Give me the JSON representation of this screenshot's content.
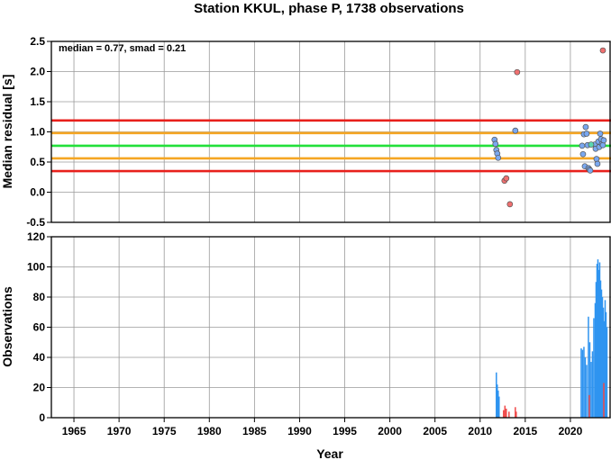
{
  "chart_data": [
    {
      "type": "scatter",
      "title": "Station KKUL, phase P, 1738 observations",
      "ylabel": "Median residual [s]",
      "annotation": "median = 0.77, smad = 0.21",
      "xlim": [
        1962.5,
        2024.5
      ],
      "ylim": [
        -0.5,
        2.5
      ],
      "yticks": [
        "-0.5",
        "0.0",
        "0.5",
        "1.0",
        "1.5",
        "2.0",
        "2.5"
      ],
      "grid": true,
      "reference_lines": [
        {
          "y": 1.19,
          "color": "#e8201c"
        },
        {
          "y": 0.98,
          "color": "#f5a623"
        },
        {
          "y": 0.77,
          "color": "#22e03a"
        },
        {
          "y": 0.56,
          "color": "#f5a623"
        },
        {
          "y": 0.35,
          "color": "#e8201c"
        }
      ],
      "series": [
        {
          "color": "#f07070",
          "points": [
            [
              2012.7,
              0.19
            ],
            [
              2012.9,
              0.23
            ],
            [
              2013.3,
              -0.2
            ],
            [
              2014.1,
              1.99
            ],
            [
              2023.6,
              2.35
            ]
          ]
        },
        {
          "color": "#7aa8f0",
          "points": [
            [
              2011.6,
              0.87
            ],
            [
              2011.7,
              0.8
            ],
            [
              2011.8,
              0.7
            ],
            [
              2011.9,
              0.64
            ],
            [
              2012.0,
              0.57
            ],
            [
              2013.9,
              1.02
            ],
            [
              2021.3,
              0.77
            ],
            [
              2021.4,
              0.63
            ],
            [
              2021.5,
              0.96
            ],
            [
              2021.6,
              0.43
            ],
            [
              2021.7,
              1.08
            ],
            [
              2021.8,
              0.97
            ],
            [
              2021.9,
              0.78
            ],
            [
              2022.0,
              0.4
            ],
            [
              2022.1,
              0.38
            ],
            [
              2022.2,
              0.36
            ],
            [
              2022.7,
              0.79
            ],
            [
              2022.8,
              0.72
            ],
            [
              2022.9,
              0.55
            ],
            [
              2023.0,
              0.47
            ],
            [
              2023.1,
              0.84
            ],
            [
              2023.2,
              0.75
            ],
            [
              2023.3,
              0.97
            ],
            [
              2023.4,
              0.88
            ],
            [
              2023.5,
              0.8
            ],
            [
              2023.6,
              0.78
            ],
            [
              2023.7,
              0.86
            ]
          ]
        },
        {
          "color": "#5ad8b0",
          "points": [
            [
              2022.3,
              0.79
            ]
          ]
        }
      ]
    },
    {
      "type": "bar",
      "xlabel": "Year",
      "ylabel": "Observations",
      "xlim": [
        1962.5,
        2024.5
      ],
      "ylim": [
        0,
        120
      ],
      "xticks": [
        "1965",
        "1970",
        "1975",
        "1980",
        "1985",
        "1990",
        "1995",
        "2000",
        "2005",
        "2010",
        "2015",
        "2020"
      ],
      "yticks": [
        "0",
        "20",
        "40",
        "60",
        "80",
        "100",
        "120"
      ],
      "grid": true,
      "series": [
        {
          "color": "#2f94f0",
          "bars": [
            [
              2011.8,
              30
            ],
            [
              2011.9,
              22
            ],
            [
              2012.0,
              18
            ],
            [
              2012.1,
              14
            ],
            [
              2021.2,
              46
            ],
            [
              2021.35,
              45
            ],
            [
              2021.5,
              47
            ],
            [
              2021.65,
              40
            ],
            [
              2021.8,
              35
            ],
            [
              2022.0,
              67
            ],
            [
              2022.15,
              50
            ],
            [
              2022.3,
              37
            ],
            [
              2022.45,
              44
            ],
            [
              2022.6,
              66
            ],
            [
              2022.75,
              76
            ],
            [
              2022.85,
              90
            ],
            [
              2022.95,
              102
            ],
            [
              2023.05,
              105
            ],
            [
              2023.15,
              98
            ],
            [
              2023.25,
              103
            ],
            [
              2023.35,
              91
            ],
            [
              2023.45,
              85
            ],
            [
              2023.55,
              80
            ],
            [
              2023.65,
              73
            ],
            [
              2023.75,
              64
            ],
            [
              2023.85,
              78
            ],
            [
              2023.95,
              70
            ],
            [
              2024.05,
              60
            ]
          ]
        },
        {
          "color": "#f04848",
          "bars": [
            [
              2012.6,
              5
            ],
            [
              2012.75,
              8
            ],
            [
              2012.9,
              6
            ],
            [
              2013.2,
              4
            ],
            [
              2013.9,
              7
            ],
            [
              2014.0,
              4
            ],
            [
              2022.1,
              15
            ],
            [
              2023.7,
              23
            ]
          ]
        }
      ]
    }
  ]
}
